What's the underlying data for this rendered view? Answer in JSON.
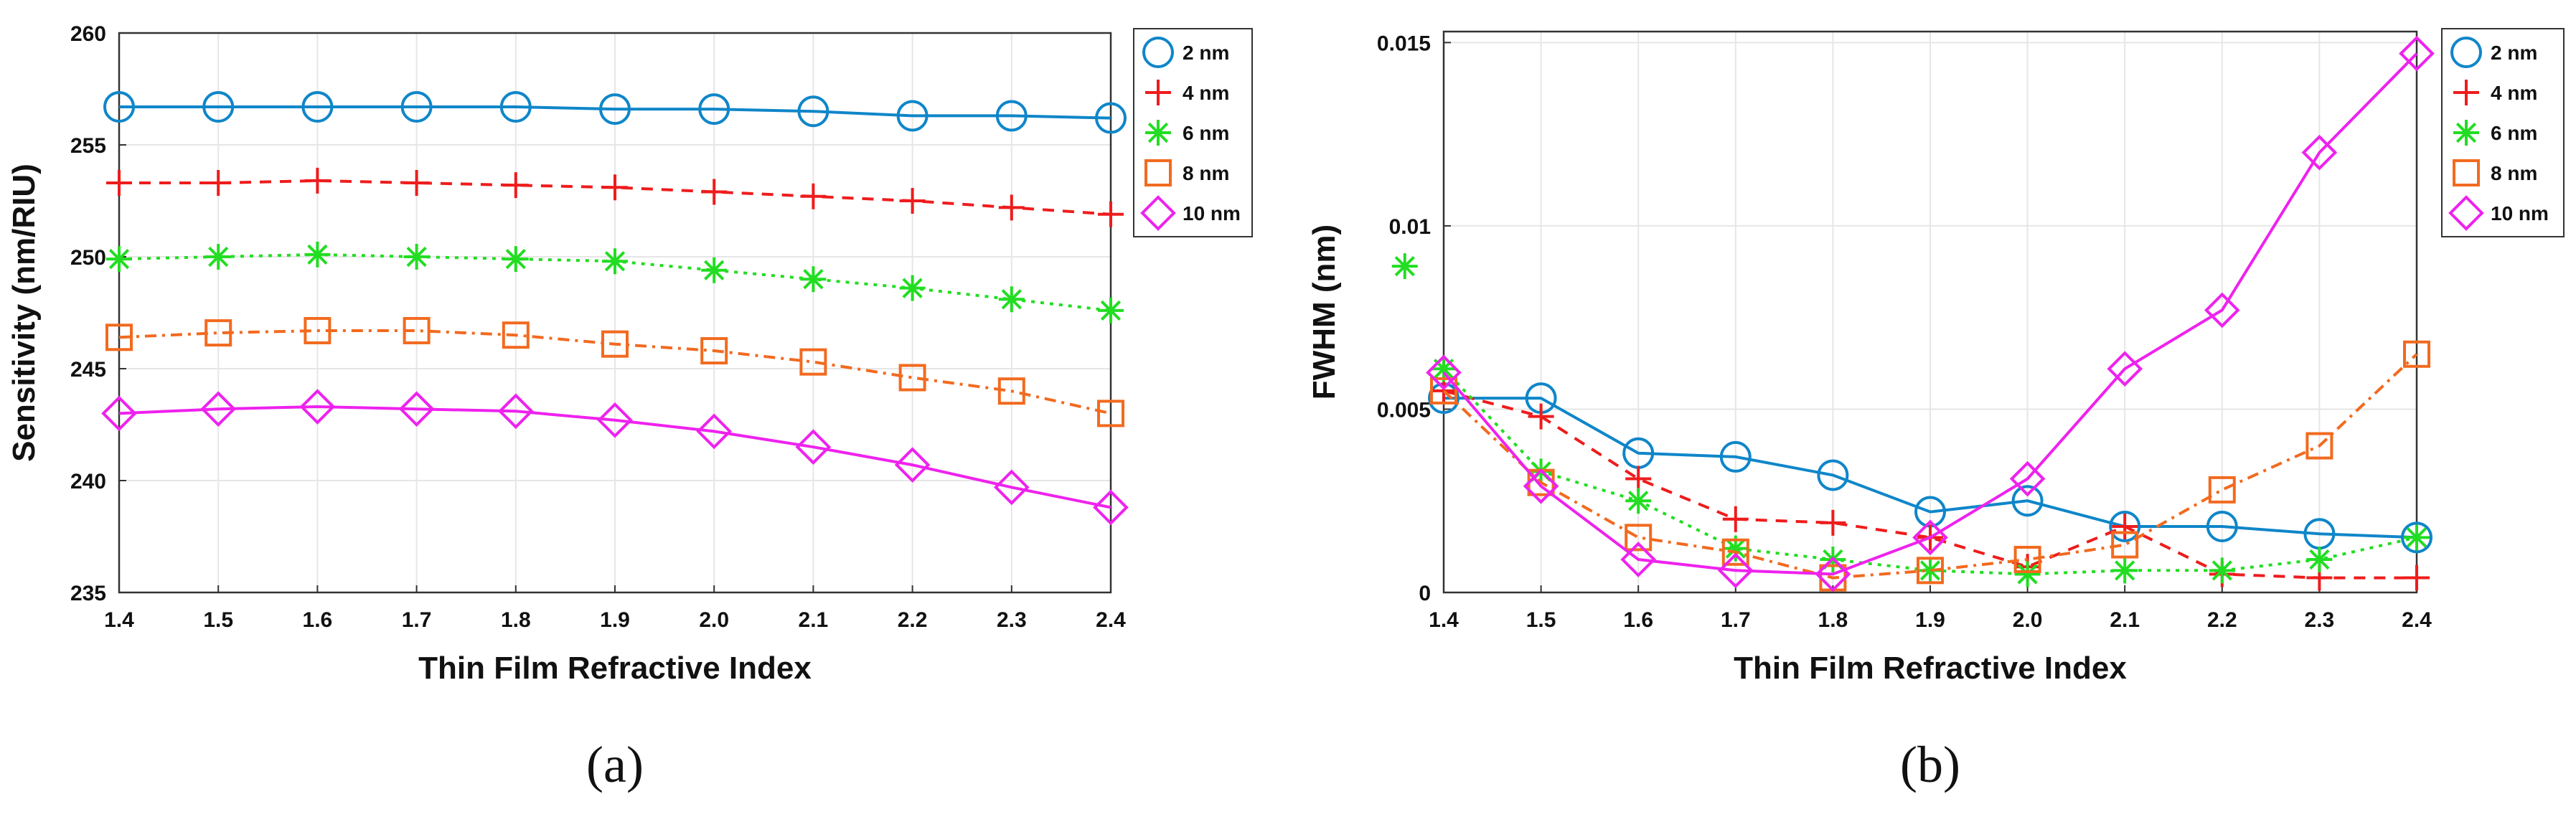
{
  "chart_data": [
    {
      "type": "line",
      "panel_label": "(a)",
      "xlabel": "Thin Film Refractive Index",
      "ylabel": "Sensitivity (nm/RIU)",
      "x": [
        1.4,
        1.5,
        1.6,
        1.7,
        1.8,
        1.9,
        2.0,
        2.1,
        2.2,
        2.3,
        2.4
      ],
      "xticklabels": [
        "1.4",
        "1.5",
        "1.6",
        "1.7",
        "1.8",
        "1.9",
        "2.0",
        "2.1",
        "2.2",
        "2.3",
        "2.4"
      ],
      "xlim": [
        1.4,
        2.4
      ],
      "ylim": [
        235,
        260
      ],
      "yticks": [
        235,
        240,
        245,
        250,
        255,
        260
      ],
      "yticklabels": [
        "235",
        "240",
        "245",
        "250",
        "255",
        "260"
      ],
      "grid": true,
      "legend_position": "top-right",
      "series": [
        {
          "name": "2 nm",
          "color": "#0f86c9",
          "marker": "circle",
          "dash": "solid",
          "values": [
            256.7,
            256.7,
            256.7,
            256.7,
            256.7,
            256.6,
            256.6,
            256.5,
            256.3,
            256.3,
            256.2
          ]
        },
        {
          "name": "4 nm",
          "color": "#ee1c1c",
          "marker": "plus",
          "dash": "dashed",
          "values": [
            253.3,
            253.3,
            253.4,
            253.3,
            253.2,
            253.1,
            252.9,
            252.7,
            252.5,
            252.2,
            251.9
          ]
        },
        {
          "name": "6 nm",
          "color": "#22dd22",
          "marker": "asterisk",
          "dash": "dotted",
          "values": [
            249.9,
            250.0,
            250.1,
            250.0,
            249.9,
            249.8,
            249.4,
            249.0,
            248.6,
            248.1,
            247.6
          ]
        },
        {
          "name": "8 nm",
          "color": "#f26a1f",
          "marker": "square",
          "dash": "dashdot",
          "values": [
            246.4,
            246.6,
            246.7,
            246.7,
            246.5,
            246.1,
            245.8,
            245.3,
            244.6,
            244.0,
            243.0
          ]
        },
        {
          "name": "10 nm",
          "color": "#ee22ee",
          "marker": "diamond",
          "dash": "solid",
          "values": [
            243.0,
            243.2,
            243.3,
            243.2,
            243.1,
            242.7,
            242.2,
            241.5,
            240.7,
            239.7,
            238.8
          ]
        }
      ]
    },
    {
      "type": "line",
      "panel_label": "(b)",
      "xlabel": "Thin Film Refractive Index",
      "ylabel": "FWHM (nm)",
      "x": [
        1.4,
        1.5,
        1.6,
        1.7,
        1.8,
        1.9,
        2.0,
        2.1,
        2.2,
        2.3,
        2.4
      ],
      "xticklabels": [
        "1.4",
        "1.5",
        "1.6",
        "1.7",
        "1.8",
        "1.9",
        "2.0",
        "2.1",
        "2.2",
        "2.3",
        "2.4"
      ],
      "xlim": [
        1.4,
        2.4
      ],
      "ylim": [
        0,
        0.0153
      ],
      "yticks": [
        0,
        0.005,
        0.01,
        0.015
      ],
      "yticklabels": [
        "0",
        "0.005",
        "0.01",
        "0.015"
      ],
      "grid": true,
      "legend_position": "top-right",
      "annotations": [
        {
          "type": "marker",
          "marker": "asterisk",
          "color": "#22dd22",
          "x": 1.36,
          "y": 0.0089
        }
      ],
      "series": [
        {
          "name": "2 nm",
          "color": "#0f86c9",
          "marker": "circle",
          "dash": "solid",
          "values": [
            0.0053,
            0.0053,
            0.0038,
            0.0037,
            0.0032,
            0.0022,
            0.0025,
            0.0018,
            0.0018,
            0.0016,
            0.0015
          ]
        },
        {
          "name": "4 nm",
          "color": "#ee1c1c",
          "marker": "plus",
          "dash": "dashed",
          "values": [
            0.0055,
            0.0048,
            0.0031,
            0.002,
            0.0019,
            0.0015,
            0.0007,
            0.0018,
            0.0005,
            0.0004,
            0.0004
          ]
        },
        {
          "name": "6 nm",
          "color": "#22dd22",
          "marker": "asterisk",
          "dash": "dotted",
          "values": [
            0.0061,
            0.0033,
            0.0025,
            0.0012,
            0.0009,
            0.0006,
            0.0005,
            0.0006,
            0.0006,
            0.0009,
            0.0015
          ]
        },
        {
          "name": "8 nm",
          "color": "#f26a1f",
          "marker": "square",
          "dash": "dashdot",
          "values": [
            0.0055,
            0.003,
            0.0015,
            0.0011,
            0.0004,
            0.0006,
            0.0009,
            0.0013,
            0.0028,
            0.004,
            0.0065
          ]
        },
        {
          "name": "10 nm",
          "color": "#ee22ee",
          "marker": "diamond",
          "dash": "solid",
          "values": [
            0.006,
            0.0029,
            0.0009,
            0.0006,
            0.0005,
            0.0015,
            0.0031,
            0.0061,
            0.0077,
            0.012,
            0.0147
          ]
        }
      ]
    }
  ]
}
